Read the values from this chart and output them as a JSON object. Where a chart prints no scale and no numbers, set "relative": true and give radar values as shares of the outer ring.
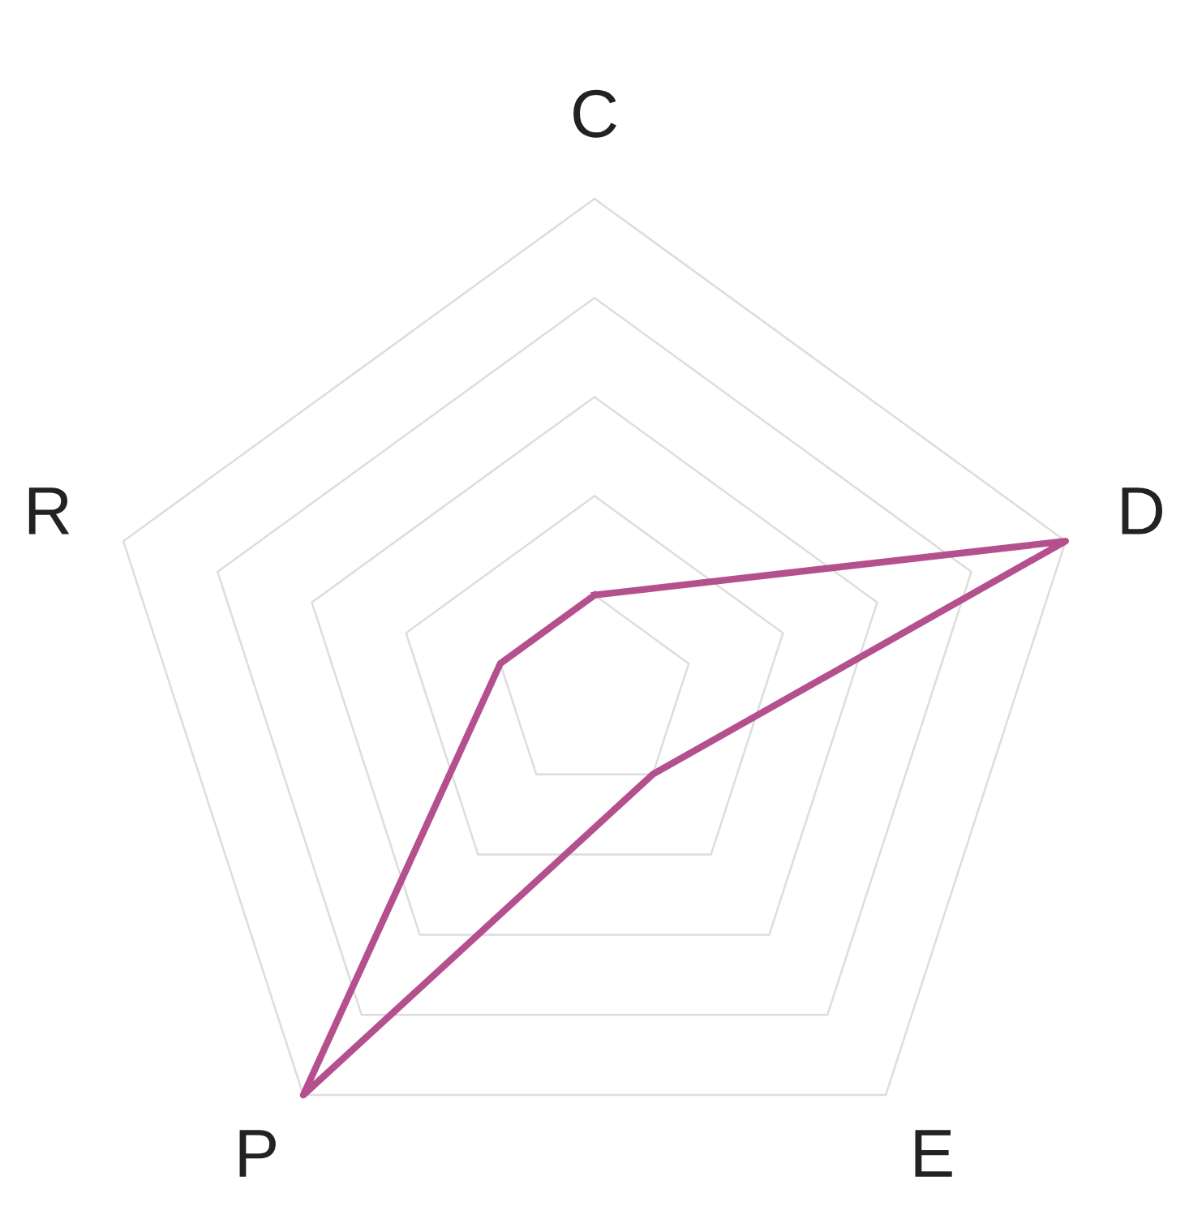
{
  "chart_data": {
    "type": "radar",
    "relative": true,
    "grid": true,
    "categories": [
      "C",
      "D",
      "E",
      "P",
      "R"
    ],
    "series": [
      {
        "color": "#b5508f",
        "values": [
          0.2,
          1,
          0.2,
          1,
          0.2
        ]
      }
    ]
  }
}
